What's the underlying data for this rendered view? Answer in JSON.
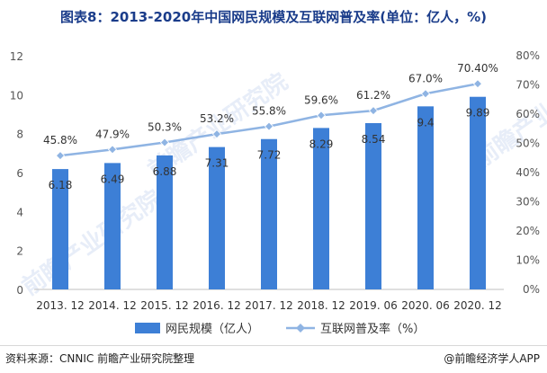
{
  "title": "图表8：2013-2020年中国网民规模及互联网普及率(单位：亿人，%)",
  "footer": {
    "source": "资料来源：CNNIC 前瞻产业研究院整理",
    "credit": "@前瞻经济学人APP"
  },
  "colors": {
    "bar": "#3d7fd6",
    "line": "#8fb4e3",
    "title": "#1a3c8a"
  },
  "chart_data": {
    "type": "bar",
    "title": "图表8：2013-2020年中国网民规模及互联网普及率(单位：亿人，%)",
    "categories": [
      "2013.12",
      "2014.12",
      "2015.12",
      "2016.12",
      "2017.12",
      "2018.12",
      "2019.06",
      "2020.06",
      "2020.12"
    ],
    "category_labels": [
      "2013. 12",
      "2014. 12",
      "2015. 12",
      "2016. 12",
      "2017. 12",
      "2018. 12",
      "2019. 06",
      "2020. 06",
      "2020. 12"
    ],
    "series": [
      {
        "name": "网民规模（亿人）",
        "type": "bar",
        "axis": "left",
        "values": [
          6.18,
          6.49,
          6.88,
          7.31,
          7.72,
          8.29,
          8.54,
          9.4,
          9.89
        ],
        "labels": [
          "6.18",
          "6.49",
          "6.88",
          "7.31",
          "7.72",
          "8.29",
          "8.54",
          "9.4",
          "9.89"
        ]
      },
      {
        "name": "互联网普及率（%）",
        "type": "line",
        "axis": "right",
        "values": [
          45.8,
          47.9,
          50.3,
          53.2,
          55.8,
          59.6,
          61.2,
          67.0,
          70.4
        ],
        "labels": [
          "45.8%",
          "47.9%",
          "50.3%",
          "53.2%",
          "55.8%",
          "59.6%",
          "61.2%",
          "67.0%",
          "70.40%"
        ]
      }
    ],
    "y_left": {
      "min": 0,
      "max": 12,
      "ticks": [
        "0",
        "2",
        "4",
        "6",
        "8",
        "10",
        "12"
      ]
    },
    "y_right": {
      "min": 0,
      "max": 80,
      "ticks": [
        "0%",
        "10%",
        "20%",
        "30%",
        "40%",
        "50%",
        "60%",
        "70%",
        "80%"
      ]
    },
    "legend_position": "bottom",
    "grid": false
  }
}
